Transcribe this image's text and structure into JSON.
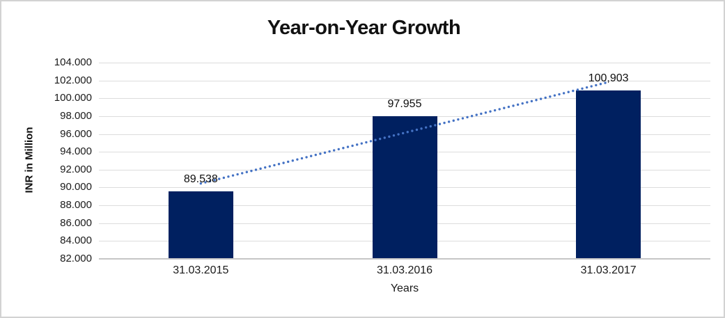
{
  "chart_data": {
    "type": "bar",
    "title": "Year-on-Year Growth",
    "xlabel": "Years",
    "ylabel": "INR in Million",
    "categories": [
      "31.03.2015",
      "31.03.2016",
      "31.03.2017"
    ],
    "values": [
      89.538,
      97.955,
      100.903
    ],
    "data_labels": [
      "89.538",
      "97.955",
      "100,903"
    ],
    "ylim": [
      82,
      104
    ],
    "ytick_step": 2,
    "ytick_labels": [
      "104.000",
      "102.000",
      "100.000",
      "98.000",
      "96.000",
      "94.000",
      "92.000",
      "90.000",
      "88.000",
      "86.000",
      "84.000",
      "82.000"
    ],
    "grid": true,
    "legend": "none",
    "bar_color": "#002060",
    "gridline_color": "#dcdcdc",
    "axis_line_color": "#c6c6c6",
    "trendline": {
      "type": "linear",
      "style": "dotted",
      "color": "#4472c4",
      "start_value": 90.45,
      "end_value": 101.82
    }
  }
}
